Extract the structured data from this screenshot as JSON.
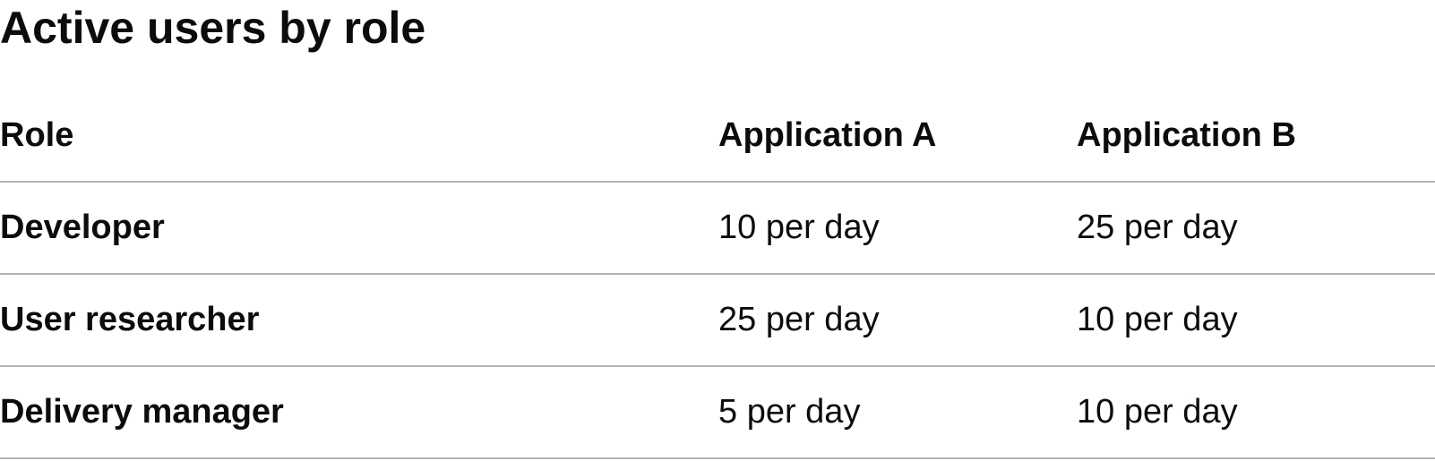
{
  "title": "Active users by role",
  "table": {
    "headers": [
      "Role",
      "Application A",
      "Application B"
    ],
    "rows": [
      [
        "Developer",
        "10 per day",
        "25 per day"
      ],
      [
        "User researcher",
        "25 per day",
        "10 per day"
      ],
      [
        "Delivery manager",
        "5 per day",
        "10 per day"
      ]
    ]
  },
  "colors": {
    "text": "#0b0c0c",
    "divider": "#b1b4b6",
    "background": "#ffffff"
  }
}
